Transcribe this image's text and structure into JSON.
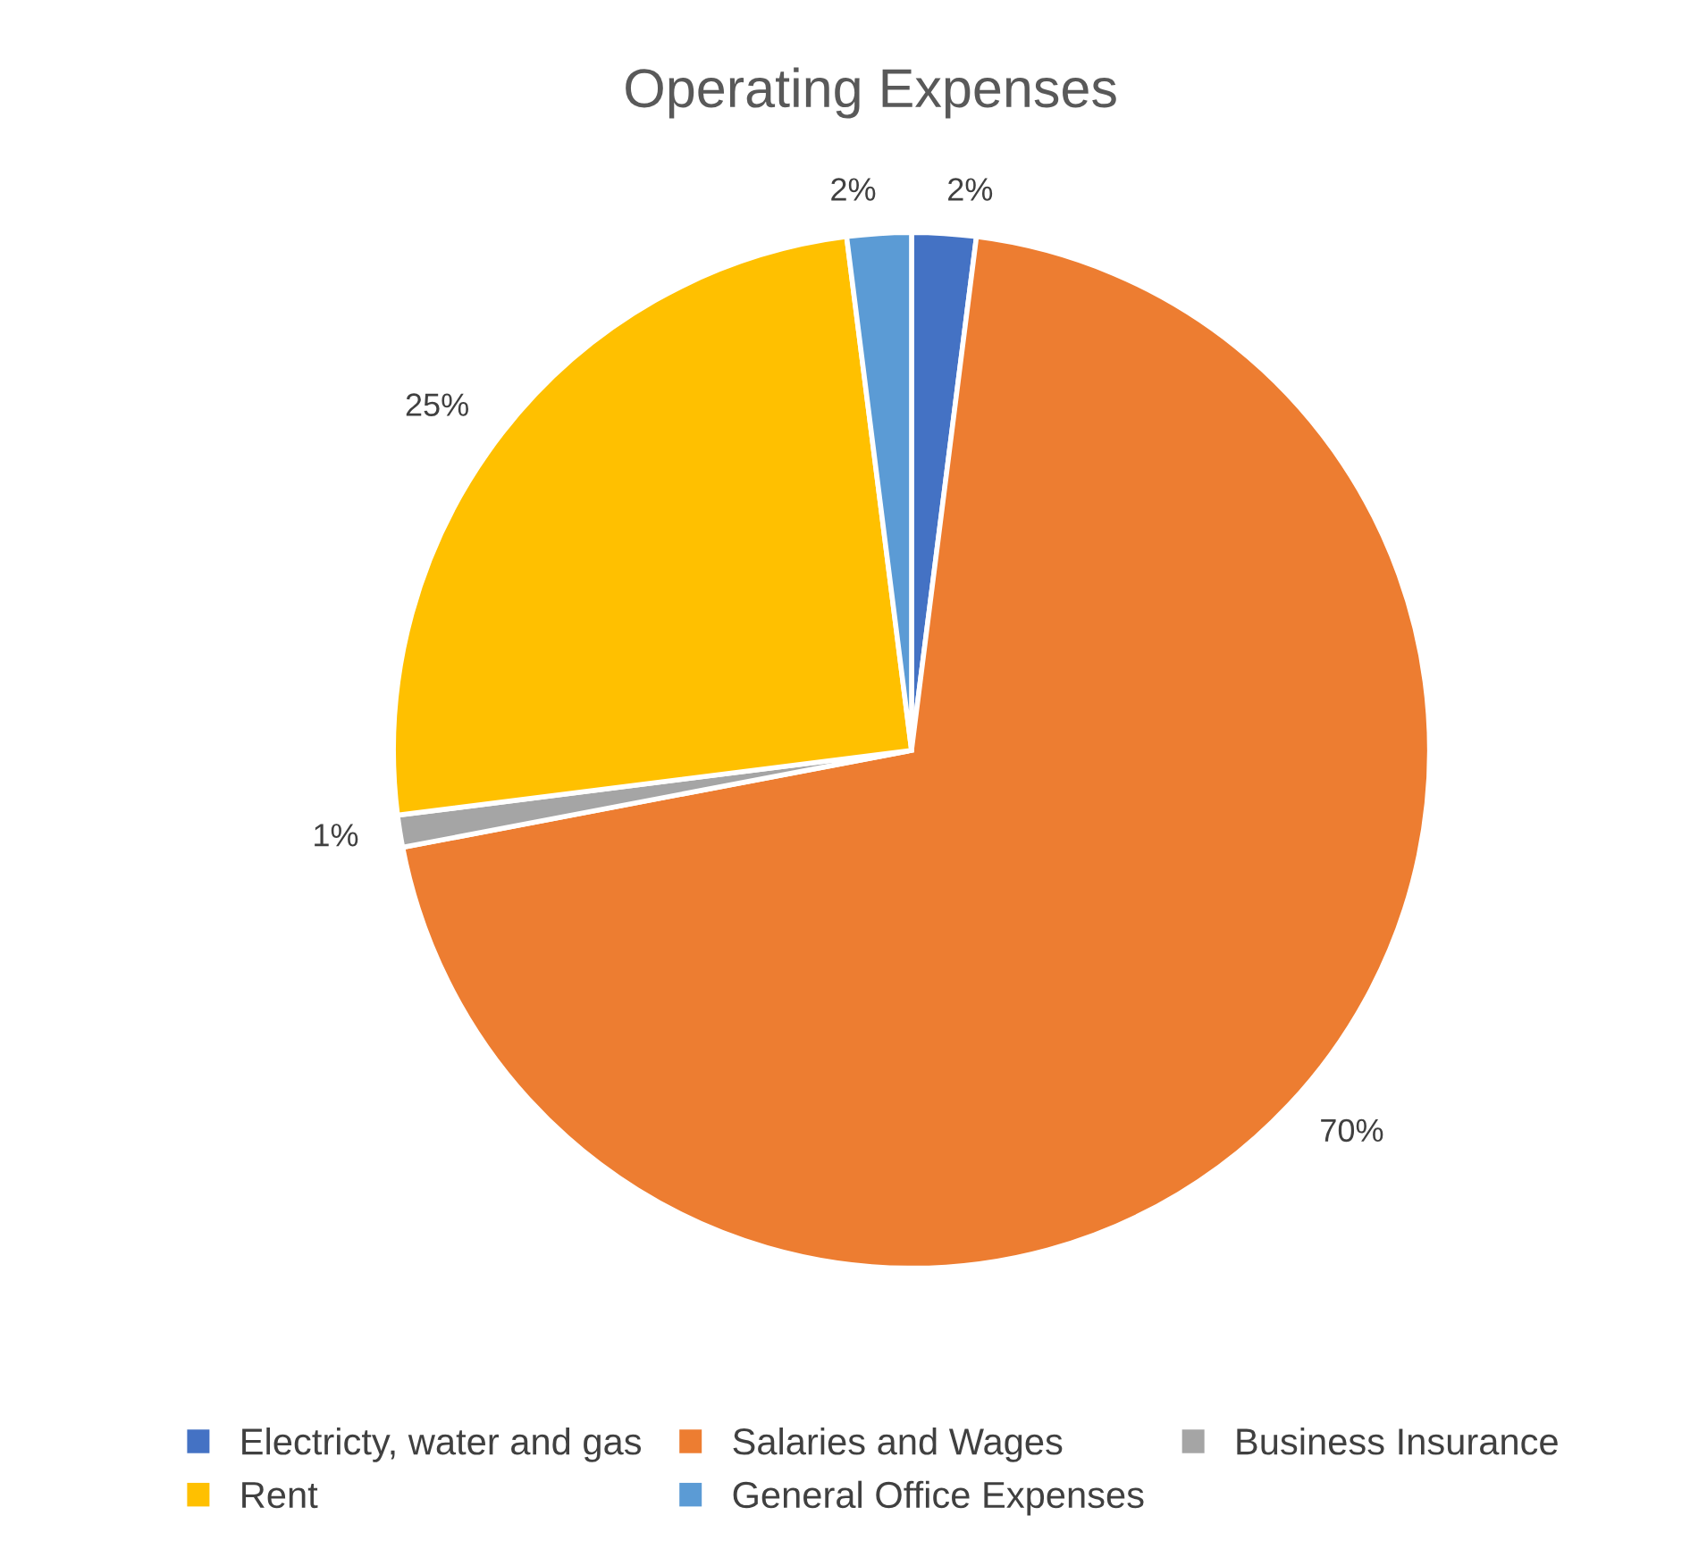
{
  "chart_data": {
    "type": "pie",
    "title": "Operating Expenses",
    "categories": [
      "Electricty, water and gas",
      "Salaries and Wages",
      "Business Insurance",
      "Rent",
      "General Office Expenses"
    ],
    "values": [
      2,
      70,
      1,
      25,
      2
    ],
    "colors": [
      "#4472c4",
      "#ed7d31",
      "#a5a5a5",
      "#ffc000",
      "#5b9bd5"
    ],
    "value_labels": [
      "2%",
      "70%",
      "1%",
      "25%",
      "2%"
    ],
    "legend": "bottom"
  }
}
